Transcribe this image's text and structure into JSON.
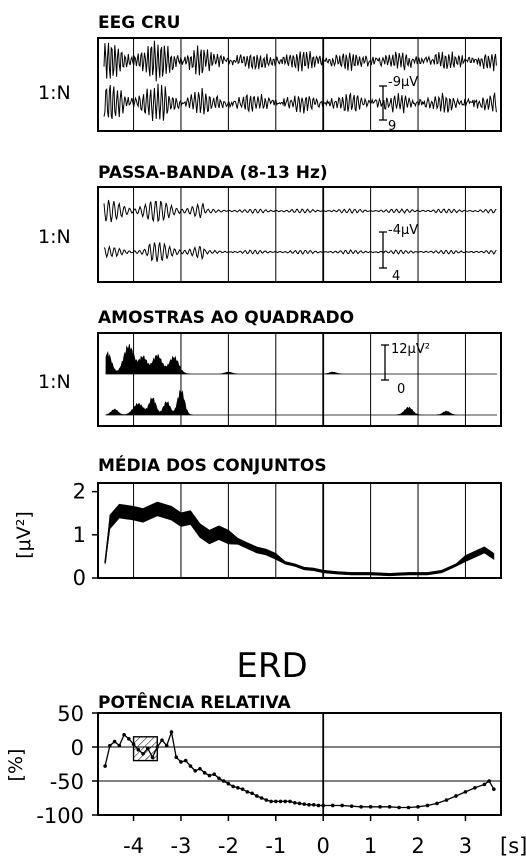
{
  "panels": {
    "raw": {
      "title": "EEG CRU",
      "row_label": "1:N",
      "scale_top": "-9μV",
      "scale_bottom": "9"
    },
    "bandpass": {
      "title": "PASSA-BANDA (8-13 Hz)",
      "row_label": "1:N",
      "scale_top": "-4μV",
      "scale_bottom": "4"
    },
    "squared": {
      "title": "AMOSTRAS AO QUADRADO",
      "row_label": "1:N",
      "scale_top": "12μV²",
      "scale_bottom": "0"
    },
    "average": {
      "title": "MÉDIA DOS CONJUNTOS",
      "ylabel": "[μV²]",
      "yticks": [
        "2",
        "1",
        "0"
      ]
    }
  },
  "erd": {
    "heading": "ERD",
    "title": "POTÊNCIA RELATIVA",
    "ylabel": "[%]",
    "xunit": "[s]"
  },
  "chart_data": [
    {
      "type": "line",
      "title": "MÉDIA DOS CONJUNTOS",
      "ylabel": "[μV²]",
      "ylim": [
        0,
        2.2
      ],
      "xlim": [
        -4.75,
        3.75
      ],
      "yticks": [
        0,
        1,
        2
      ],
      "grid": true,
      "x": [
        -4.6,
        -4.5,
        -4.3,
        -4.0,
        -3.8,
        -3.5,
        -3.2,
        -3.0,
        -2.8,
        -2.6,
        -2.4,
        -2.2,
        -2.0,
        -1.8,
        -1.6,
        -1.4,
        -1.2,
        -1.0,
        -0.8,
        -0.6,
        -0.4,
        -0.2,
        0.0,
        0.3,
        0.6,
        1.0,
        1.4,
        1.8,
        2.2,
        2.5,
        2.8,
        3.0,
        3.2,
        3.4,
        3.6
      ],
      "y": [
        0.35,
        1.3,
        1.55,
        1.5,
        1.45,
        1.6,
        1.5,
        1.35,
        1.4,
        1.1,
        0.95,
        1.05,
        0.95,
        0.85,
        0.75,
        0.65,
        0.6,
        0.5,
        0.35,
        0.3,
        0.22,
        0.2,
        0.15,
        0.12,
        0.1,
        0.1,
        0.08,
        0.1,
        0.1,
        0.15,
        0.3,
        0.45,
        0.55,
        0.65,
        0.5
      ]
    },
    {
      "type": "line",
      "title": "POTÊNCIA RELATIVA",
      "ylabel": "[%]",
      "xlabel": "[s]",
      "ylim": [
        -100,
        50
      ],
      "xlim": [
        -4.75,
        3.75
      ],
      "yticks": [
        50,
        0,
        -50,
        -100
      ],
      "xticks": [
        -4,
        -3,
        -2,
        -1,
        0,
        1,
        2,
        3
      ],
      "grid": true,
      "x": [
        -4.6,
        -4.5,
        -4.4,
        -4.3,
        -4.2,
        -4.1,
        -4.0,
        -3.9,
        -3.8,
        -3.7,
        -3.6,
        -3.5,
        -3.4,
        -3.3,
        -3.2,
        -3.1,
        -3.0,
        -2.9,
        -2.8,
        -2.7,
        -2.6,
        -2.5,
        -2.4,
        -2.3,
        -2.2,
        -2.1,
        -2.0,
        -1.9,
        -1.8,
        -1.7,
        -1.6,
        -1.5,
        -1.4,
        -1.3,
        -1.2,
        -1.1,
        -1.0,
        -0.9,
        -0.8,
        -0.7,
        -0.6,
        -0.5,
        -0.4,
        -0.3,
        -0.2,
        -0.1,
        0.0,
        0.2,
        0.4,
        0.6,
        0.8,
        1.0,
        1.2,
        1.4,
        1.6,
        1.8,
        2.0,
        2.2,
        2.4,
        2.6,
        2.8,
        3.0,
        3.2,
        3.4,
        3.5,
        3.6
      ],
      "y": [
        -28,
        2,
        8,
        2,
        18,
        12,
        4,
        -4,
        -10,
        -2,
        -15,
        0,
        10,
        2,
        22,
        -15,
        -22,
        -20,
        -28,
        -35,
        -32,
        -38,
        -42,
        -40,
        -46,
        -50,
        -54,
        -58,
        -60,
        -62,
        -66,
        -68,
        -72,
        -75,
        -78,
        -80,
        -80,
        -80,
        -80,
        -80,
        -82,
        -83,
        -84,
        -85,
        -85,
        -86,
        -86,
        -86,
        -86,
        -87,
        -88,
        -88,
        -88,
        -88,
        -89,
        -89,
        -88,
        -86,
        -83,
        -78,
        -72,
        -66,
        -60,
        -55,
        -50,
        -62
      ],
      "reference_box": {
        "x_start": -4.0,
        "x_end": -3.5,
        "y_bottom": -20,
        "y_top": 15
      }
    }
  ]
}
